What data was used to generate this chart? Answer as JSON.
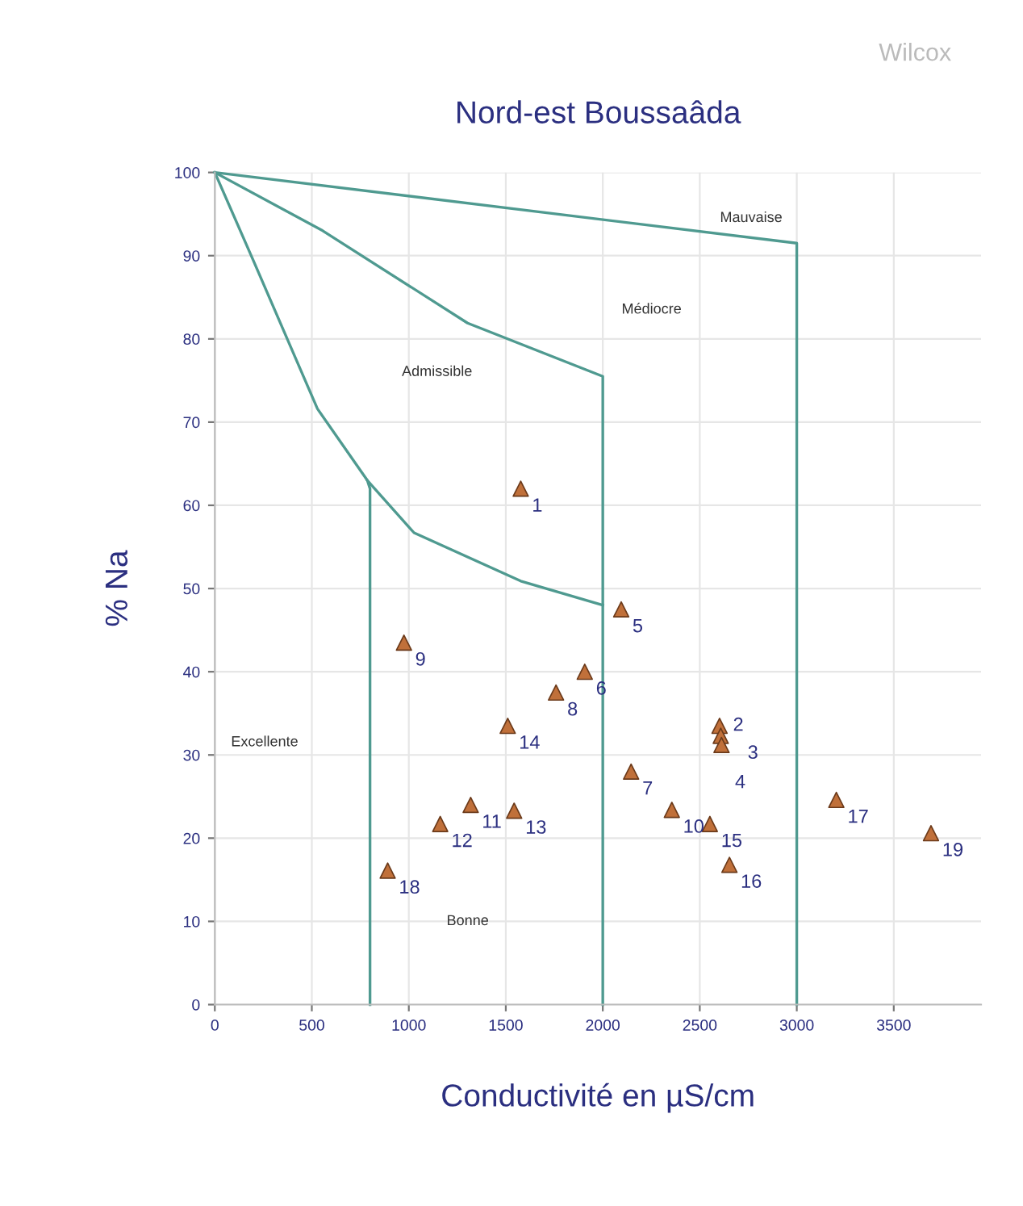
{
  "chart_data": {
    "type": "scatter",
    "title": "Nord-est Boussaâda",
    "xlabel": "Conductivité en µS/cm",
    "ylabel": "% Na",
    "xlim": [
      0,
      3950
    ],
    "ylim": [
      0,
      100
    ],
    "xticks": [
      0,
      500,
      1000,
      1500,
      2000,
      2500,
      3000,
      3500
    ],
    "yticks": [
      0,
      10,
      20,
      30,
      40,
      50,
      60,
      70,
      80,
      90,
      100
    ],
    "grid": true,
    "series": [
      {
        "type": "line",
        "color": "#4f9a90",
        "marker": "none",
        "x": [
          800,
          800,
          786,
          529,
          197,
          0
        ],
        "values": [
          0,
          62,
          63,
          71.6,
          89.5,
          100
        ]
      },
      {
        "type": "line",
        "color": "#4f9a90",
        "marker": "none",
        "x": [
          786,
          1027,
          1577,
          2000
        ],
        "values": [
          63,
          56.7,
          50.9,
          48
        ]
      },
      {
        "type": "line",
        "color": "#4f9a90",
        "marker": "none",
        "x": [
          0,
          556,
          1303,
          2000,
          2000
        ],
        "values": [
          100,
          93,
          81.9,
          75.5,
          0
        ]
      },
      {
        "type": "line",
        "color": "#4f9a90",
        "marker": "none",
        "x": [
          0,
          3000,
          3000
        ],
        "values": [
          100,
          91.5,
          0
        ]
      },
      {
        "color": "#c0703a",
        "marker": "triangle",
        "x": [
          1577,
          2602,
          2608,
          2612,
          2095,
          1907,
          2146,
          1759,
          975,
          2356,
          1319,
          1162,
          1543,
          1510,
          2552,
          2653,
          3204,
          891,
          3692
        ],
        "values": [
          62,
          33.5,
          32.3,
          31.2,
          47.5,
          40,
          28,
          37.5,
          43.5,
          23.4,
          24,
          21.7,
          23.3,
          33.5,
          21.7,
          16.8,
          24.6,
          16.1,
          20.6
        ]
      }
    ],
    "annotations": [
      "Wilcox",
      "Mauvaise",
      "Médiocre",
      "Admissible",
      "Excellente",
      "Bonne",
      {
        "text": "1",
        "x": 1577,
        "y": 62
      },
      {
        "text": "2",
        "x": 2602,
        "y": 33.5
      },
      {
        "text": "3",
        "x": 2608,
        "y": 32.3
      },
      {
        "text": "4",
        "x": 2612,
        "y": 31.2
      },
      {
        "text": "5",
        "x": 2095,
        "y": 47.5
      },
      {
        "text": "6",
        "x": 1907,
        "y": 40
      },
      {
        "text": "7",
        "x": 2146,
        "y": 28
      },
      {
        "text": "8",
        "x": 1759,
        "y": 37.5
      },
      {
        "text": "9",
        "x": 975,
        "y": 43.5
      },
      {
        "text": "10",
        "x": 2356,
        "y": 23.4
      },
      {
        "text": "11",
        "x": 1319,
        "y": 24
      },
      {
        "text": "12",
        "x": 1162,
        "y": 21.7
      },
      {
        "text": "13",
        "x": 1543,
        "y": 23.3
      },
      {
        "text": "14",
        "x": 1510,
        "y": 33.5
      },
      {
        "text": "15",
        "x": 2552,
        "y": 21.7
      },
      {
        "text": "16",
        "x": 2653,
        "y": 16.8
      },
      {
        "text": "17",
        "x": 3204,
        "y": 24.6
      },
      {
        "text": "18",
        "x": 891,
        "y": 16.1
      },
      {
        "text": "19",
        "x": 3692,
        "y": 20.6
      }
    ]
  }
}
